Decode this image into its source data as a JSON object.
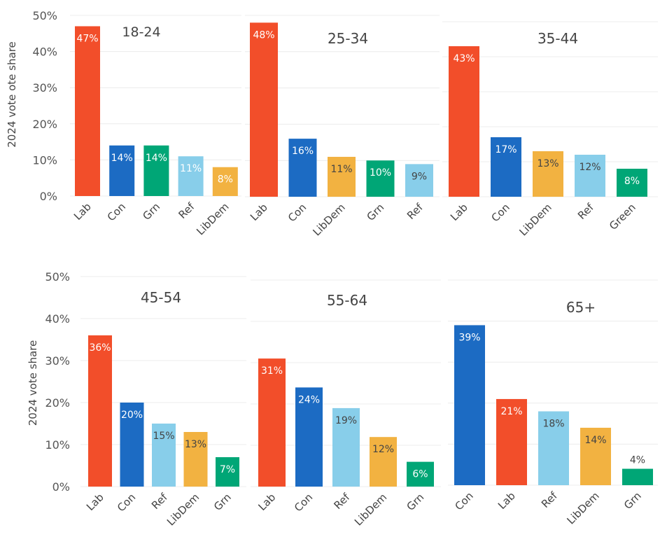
{
  "chart_data": [
    {
      "type": "bar",
      "title": "18-24",
      "ylabel": "2024 vote ote share",
      "ylim": [
        0,
        50
      ],
      "yticks": [
        "0%",
        "10%",
        "20%",
        "30%",
        "40%",
        "50%"
      ],
      "categories": [
        "Lab",
        "Con",
        "Grn",
        "Ref",
        "LibDem"
      ],
      "values": [
        47,
        14,
        14,
        11,
        8
      ],
      "labels": [
        "47%",
        "14%",
        "14%",
        "11%",
        "8%"
      ]
    },
    {
      "type": "bar",
      "title": "25-34",
      "ylim": [
        0,
        50
      ],
      "categories": [
        "Lab",
        "Con",
        "LibDem",
        "Grn",
        "Ref"
      ],
      "values": [
        48,
        16,
        11,
        10,
        9
      ],
      "labels": [
        "48%",
        "16%",
        "11%",
        "10%",
        "9%"
      ]
    },
    {
      "type": "bar",
      "title": "35-44",
      "ylim": [
        0,
        50
      ],
      "categories": [
        "Lab",
        "Con",
        "LibDem",
        "Ref",
        "Green"
      ],
      "values": [
        43,
        17,
        13,
        12,
        8
      ],
      "labels": [
        "43%",
        "17%",
        "13%",
        "12%",
        "8%"
      ]
    },
    {
      "type": "bar",
      "title": "45-54",
      "ylabel": "2024 vote share",
      "ylim": [
        0,
        50
      ],
      "yticks": [
        "0%",
        "10%",
        "20%",
        "30%",
        "40%",
        "50%"
      ],
      "categories": [
        "Lab",
        "Con",
        "Ref",
        "LibDem",
        "Grn"
      ],
      "values": [
        36,
        20,
        15,
        13,
        7
      ],
      "labels": [
        "36%",
        "20%",
        "15%",
        "13%",
        "7%"
      ]
    },
    {
      "type": "bar",
      "title": "55-64",
      "ylim": [
        0,
        50
      ],
      "categories": [
        "Lab",
        "Con",
        "Ref",
        "LibDem",
        "Grn"
      ],
      "values": [
        31,
        24,
        19,
        12,
        6
      ],
      "labels": [
        "31%",
        "24%",
        "19%",
        "12%",
        "6%"
      ]
    },
    {
      "type": "bar",
      "title": "65+",
      "ylim": [
        0,
        50
      ],
      "categories": [
        "Con",
        "Lab",
        "Ref",
        "LibDem",
        "Grn"
      ],
      "values": [
        39,
        21,
        18,
        14,
        4
      ],
      "labels": [
        "39%",
        "21%",
        "18%",
        "14%",
        "4%"
      ]
    }
  ],
  "party_colors": {
    "Lab": "#F24E2A",
    "Con": "#1C6BC3",
    "Grn": "#00A676",
    "Green": "#00A676",
    "Ref": "#88CEEA",
    "LibDem": "#F2B241"
  }
}
